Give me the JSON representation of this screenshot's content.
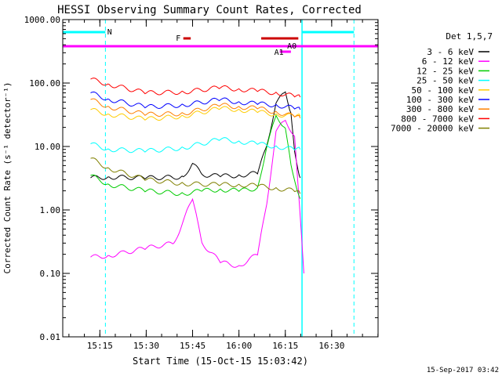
{
  "chart_data": {
    "type": "line",
    "title": "HESSI Observing Summary Count Rates, Corrected",
    "xlabel": "Start Time (15-Oct-15 15:03:42)",
    "ylabel": "Corrected Count Rate (s⁻¹ detector⁻¹)",
    "yscale": "log",
    "ylim": [
      0.01,
      1000
    ],
    "y_ticks": [
      0.01,
      0.1,
      1,
      10,
      100,
      1000
    ],
    "y_tick_labels": [
      "0.01",
      "0.10",
      "1.00",
      "10.00",
      "100.00",
      "1000.00"
    ],
    "xlim_minutes": [
      15.05,
      16.75
    ],
    "x_ticks": [
      15.25,
      15.5,
      15.75,
      16.0,
      16.25,
      16.5
    ],
    "x_tick_labels": [
      "15:15",
      "15:30",
      "15:45",
      "16:00",
      "16:15",
      "16:30"
    ],
    "legend_title": "Det 1,5,7",
    "legend_position": "right",
    "timestamp": "15-Sep-2017 03:42",
    "series": [
      {
        "name": "3 - 6 keV",
        "color": "#000000",
        "x": [
          15.2,
          15.3,
          15.5,
          15.7,
          15.75,
          15.8,
          15.9,
          16.0,
          16.1,
          16.15,
          16.2,
          16.25,
          16.28,
          16.3,
          16.33
        ],
        "values": [
          3.2,
          3.3,
          3.2,
          3.3,
          5.5,
          3.6,
          3.4,
          3.5,
          3.8,
          10,
          50,
          70,
          35,
          8,
          3.2
        ]
      },
      {
        "name": "6 - 12 keV",
        "color": "#ff00ff",
        "x": [
          15.2,
          15.3,
          15.5,
          15.65,
          15.75,
          15.8,
          15.9,
          16.0,
          16.1,
          16.15,
          16.2,
          16.25,
          16.3,
          16.35
        ],
        "values": [
          0.18,
          0.19,
          0.25,
          0.3,
          1.5,
          0.3,
          0.15,
          0.13,
          0.2,
          1.2,
          18,
          25,
          15,
          0.1
        ]
      },
      {
        "name": "12 - 25 keV",
        "color": "#00cc00",
        "x": [
          15.2,
          15.3,
          15.5,
          15.7,
          15.8,
          15.9,
          16.0,
          16.1,
          16.15,
          16.2,
          16.25,
          16.28,
          16.33
        ],
        "values": [
          3.5,
          2.5,
          2.0,
          1.8,
          2.0,
          2.1,
          2.0,
          2.2,
          10,
          30,
          20,
          5,
          1.5
        ]
      },
      {
        "name": "25 - 50 keV",
        "color": "#00ffff",
        "x": [
          15.2,
          15.3,
          15.5,
          15.7,
          15.9,
          16.0,
          16.1,
          16.2,
          16.3,
          16.33
        ],
        "values": [
          11,
          9,
          8.5,
          9.5,
          13,
          12,
          11,
          10,
          9,
          9
        ]
      },
      {
        "name": "50 - 100 keV",
        "color": "#ffcc00",
        "x": [
          15.2,
          15.3,
          15.5,
          15.7,
          15.9,
          16.0,
          16.1,
          16.2,
          16.3,
          16.33
        ],
        "values": [
          38,
          32,
          27,
          30,
          40,
          38,
          35,
          32,
          30,
          30
        ]
      },
      {
        "name": "100 - 300 keV",
        "color": "#0000ff",
        "x": [
          15.2,
          15.3,
          15.5,
          15.7,
          15.9,
          16.0,
          16.1,
          16.2,
          16.3,
          16.33
        ],
        "values": [
          70,
          55,
          42,
          45,
          55,
          50,
          47,
          45,
          40,
          38
        ]
      },
      {
        "name": "300 - 800 keV",
        "color": "#ff8000",
        "x": [
          15.2,
          15.3,
          15.5,
          15.7,
          15.9,
          16.0,
          16.1,
          16.2,
          16.3,
          16.33
        ],
        "values": [
          55,
          42,
          32,
          33,
          45,
          42,
          40,
          35,
          30,
          28
        ]
      },
      {
        "name": "800 - 7000 keV",
        "color": "#ff0000",
        "x": [
          15.2,
          15.3,
          15.5,
          15.7,
          15.9,
          16.0,
          16.1,
          16.2,
          16.3,
          16.33
        ],
        "values": [
          115,
          95,
          70,
          72,
          85,
          80,
          75,
          70,
          62,
          60
        ]
      },
      {
        "name": "7000 - 20000 keV",
        "color": "#808000",
        "x": [
          15.2,
          15.3,
          15.5,
          15.7,
          15.9,
          16.0,
          16.1,
          16.2,
          16.3,
          16.33
        ],
        "values": [
          6.5,
          4.5,
          3.0,
          2.6,
          2.5,
          2.5,
          2.4,
          2.2,
          2.0,
          1.8
        ]
      }
    ],
    "annotations": {
      "night_bar": {
        "label": "N",
        "color": "#00ffff",
        "segments": [
          [
            15.05,
            15.28
          ],
          [
            16.34,
            16.62
          ]
        ]
      },
      "flare_bar": {
        "label": "F",
        "color": "#cc0000",
        "segments": [
          [
            15.7,
            15.74
          ],
          [
            16.12,
            16.32
          ]
        ]
      },
      "saa_bar": {
        "color": "#ff00ff",
        "segments": [
          [
            15.05,
            16.75
          ]
        ]
      },
      "attenuator_a0": {
        "label": "A0",
        "color": "#ff00ff",
        "segments": [
          [
            16.17,
            16.32
          ]
        ]
      },
      "attenuator_a1": {
        "label": "A1",
        "color": "#ff00ff",
        "segments": [
          [
            16.22,
            16.28
          ]
        ]
      },
      "vlines_dashed": [
        15.28,
        16.62
      ],
      "vlines_solid": [
        16.34
      ]
    }
  }
}
